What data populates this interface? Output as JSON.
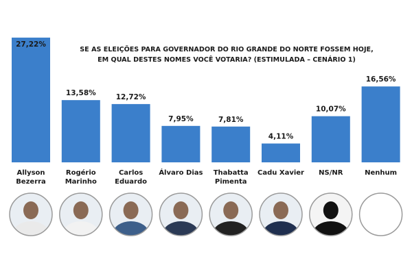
{
  "chart_data": {
    "type": "bar",
    "title": [
      "SE AS ELEIÇÕES PARA GOVERNADOR DO RIO GRANDE DO NORTE FOSSEM HOJE,",
      "EM QUAL DESTES NOMES VOCÊ VOTARIA? (ESTIMULADA – CENÁRIO 1)"
    ],
    "categories": [
      "Allyson Bezerra",
      "Rogério Marinho",
      "Carlos Eduardo",
      "Álvaro Dias",
      "Thabatta Pimenta",
      "Cadu Xavier",
      "NS/NR",
      "Nenhum"
    ],
    "values": [
      27.22,
      13.58,
      12.72,
      7.95,
      7.81,
      4.11,
      10.07,
      16.56
    ],
    "value_labels": [
      "27,22%",
      "13,58%",
      "12,72%",
      "7,95%",
      "7,81%",
      "4,11%",
      "10,07%",
      "16,56%"
    ],
    "color": "#3b7fcb"
  }
}
